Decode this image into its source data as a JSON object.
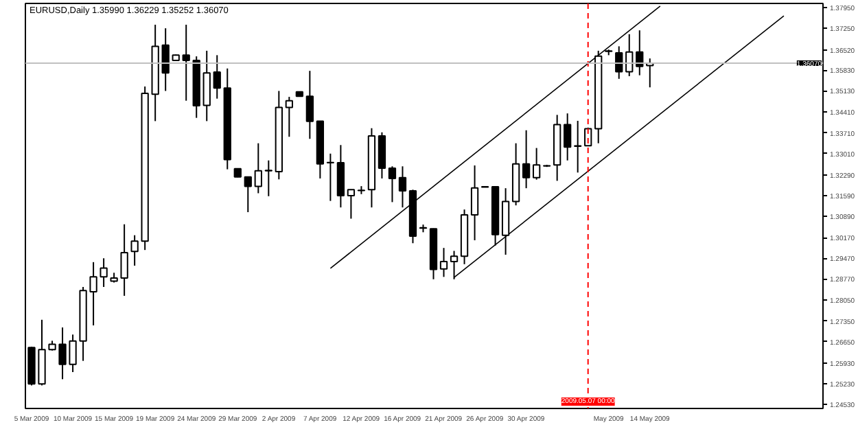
{
  "chart_data": {
    "type": "candlestick",
    "title": "EURUSD,Daily  1.35990 1.36229 1.35252 1.36070",
    "categories": [
      "5 Mar 2009",
      null,
      null,
      null,
      "10 Mar 2009",
      null,
      null,
      null,
      "15 Mar 2009",
      null,
      null,
      null,
      "19 Mar 2009",
      null,
      null,
      null,
      "24 Mar 2009",
      null,
      null,
      null,
      "29 Mar 2009",
      null,
      null,
      null,
      "2 Apr 2009",
      null,
      null,
      null,
      "7 Apr 2009",
      null,
      null,
      null,
      "12 Apr 2009",
      null,
      null,
      null,
      "16 Apr 2009",
      null,
      null,
      null,
      "21 Apr 2009",
      null,
      null,
      null,
      "26 Apr 2009",
      null,
      null,
      null,
      "30 Apr 2009",
      null,
      null,
      null,
      null,
      null,
      "2009.05.07 00:00",
      null,
      "May 2009",
      null,
      null,
      null,
      "14 May 2009",
      null,
      null,
      null,
      null,
      null,
      null,
      null,
      null,
      null,
      null,
      null,
      null,
      null,
      null,
      null,
      null
    ],
    "ohlc": [
      [
        1.2645,
        1.2648,
        1.2517,
        1.2522
      ],
      [
        1.2522,
        1.2739,
        1.2517,
        1.2638
      ],
      [
        1.2638,
        1.2668,
        1.2635,
        1.2656
      ],
      [
        1.2656,
        1.2713,
        1.2538,
        1.2588
      ],
      [
        1.2588,
        1.2689,
        1.2562,
        1.2667
      ],
      [
        1.2667,
        1.285,
        1.26,
        1.2838
      ],
      [
        1.2834,
        1.2934,
        1.272,
        1.2884
      ],
      [
        1.2884,
        1.2947,
        1.285,
        1.2914
      ],
      [
        1.287,
        1.2898,
        1.2865,
        1.288
      ],
      [
        1.288,
        1.3062,
        1.282,
        1.2966
      ],
      [
        1.297,
        1.3025,
        1.2922,
        1.3005
      ],
      [
        1.3005,
        1.3528,
        1.2975,
        1.3505
      ],
      [
        1.3502,
        1.3737,
        1.3411,
        1.3664
      ],
      [
        1.3668,
        1.3725,
        1.3513,
        1.3574
      ],
      [
        1.3616,
        1.3636,
        1.3616,
        1.3634
      ],
      [
        1.3634,
        1.3737,
        1.348,
        1.3616
      ],
      [
        1.3616,
        1.363,
        1.3422,
        1.3463
      ],
      [
        1.3464,
        1.3649,
        1.3411,
        1.3574
      ],
      [
        1.3577,
        1.3634,
        1.3487,
        1.3523
      ],
      [
        1.3523,
        1.3589,
        1.3248,
        1.3281
      ],
      [
        1.325,
        1.3251,
        1.3221,
        1.3222
      ],
      [
        1.3222,
        1.3223,
        1.3103,
        1.319
      ],
      [
        1.319,
        1.3336,
        1.3167,
        1.3243
      ],
      [
        1.3243,
        1.3278,
        1.3157,
        1.3244
      ],
      [
        1.324,
        1.3513,
        1.3214,
        1.3457
      ],
      [
        1.3457,
        1.3493,
        1.3358,
        1.348
      ],
      [
        1.351,
        1.3511,
        1.3494,
        1.3495
      ],
      [
        1.3495,
        1.3581,
        1.3351,
        1.341
      ],
      [
        1.3411,
        1.3412,
        1.3217,
        1.3266
      ],
      [
        1.327,
        1.3301,
        1.3141,
        1.3271
      ],
      [
        1.327,
        1.333,
        1.3119,
        1.3159
      ],
      [
        1.3159,
        1.318,
        1.3081,
        1.3179
      ],
      [
        1.3176,
        1.3191,
        1.3164,
        1.3177
      ],
      [
        1.3179,
        1.3387,
        1.3119,
        1.3361
      ],
      [
        1.3361,
        1.3373,
        1.3217,
        1.3252
      ],
      [
        1.3252,
        1.3258,
        1.3137,
        1.3217
      ],
      [
        1.322,
        1.3258,
        1.3119,
        1.3175
      ],
      [
        1.3175,
        1.3179,
        1.2998,
        1.3022
      ],
      [
        1.305,
        1.3061,
        1.3035,
        1.3049
      ],
      [
        1.3047,
        1.3048,
        1.2876,
        1.2909
      ],
      [
        1.2911,
        1.2982,
        1.2884,
        1.2936
      ],
      [
        1.2936,
        1.2972,
        1.2876,
        1.2954
      ],
      [
        1.2954,
        1.3112,
        1.2927,
        1.3094
      ],
      [
        1.3094,
        1.3261,
        1.3008,
        1.3185
      ],
      [
        1.3188,
        1.319,
        1.3187,
        1.3189
      ],
      [
        1.3189,
        1.319,
        1.299,
        1.3027
      ],
      [
        1.3025,
        1.3184,
        1.2959,
        1.3139
      ],
      [
        1.3139,
        1.3336,
        1.3126,
        1.3266
      ],
      [
        1.3266,
        1.338,
        1.3184,
        1.322
      ],
      [
        1.322,
        1.332,
        1.3213,
        1.3263
      ],
      [
        1.326,
        1.3263,
        1.3256,
        1.3259
      ],
      [
        1.3263,
        1.3432,
        1.3209,
        1.3399
      ],
      [
        1.3399,
        1.3437,
        1.3278,
        1.3323
      ],
      [
        1.3326,
        1.3412,
        1.3237,
        1.3327
      ],
      [
        1.3328,
        1.3389,
        1.3326,
        1.3385
      ],
      [
        1.3385,
        1.3649,
        1.3336,
        1.3631
      ],
      [
        1.3648,
        1.3653,
        1.3634,
        1.3647
      ],
      [
        1.3642,
        1.3664,
        1.3554,
        1.3578
      ],
      [
        1.3578,
        1.3705,
        1.3563,
        1.3645
      ],
      [
        1.3645,
        1.3718,
        1.3566,
        1.3596
      ],
      [
        1.3599,
        1.36229,
        1.35252,
        1.3607
      ],
      null,
      null,
      null,
      null,
      null,
      null,
      null,
      null,
      null,
      null,
      null,
      null,
      null,
      null,
      null,
      null
    ],
    "series": [
      {
        "type": "line",
        "color": "#000000",
        "values": [
          null,
          null,
          null,
          null,
          null,
          null,
          null,
          null,
          null,
          null,
          null,
          null,
          null,
          null,
          null,
          null,
          null,
          null,
          null,
          null,
          null,
          null,
          null,
          null,
          null,
          null,
          null,
          null,
          null,
          1.2913,
          null,
          null,
          null,
          null,
          null,
          null,
          null,
          null,
          null,
          null,
          null,
          null,
          null,
          null,
          null,
          null,
          null,
          null,
          null,
          null,
          null,
          null,
          null,
          null,
          null,
          null,
          null,
          null,
          null,
          null,
          null,
          1.38,
          null,
          null,
          null,
          null,
          null,
          null,
          null,
          null,
          null,
          null,
          null,
          null,
          null,
          null,
          null
        ]
      },
      {
        "type": "line",
        "color": "#000000",
        "values": [
          null,
          null,
          null,
          null,
          null,
          null,
          null,
          null,
          null,
          null,
          null,
          null,
          null,
          null,
          null,
          null,
          null,
          null,
          null,
          null,
          null,
          null,
          null,
          null,
          null,
          null,
          null,
          null,
          null,
          null,
          null,
          null,
          null,
          null,
          null,
          null,
          null,
          null,
          null,
          null,
          null,
          1.2882,
          null,
          null,
          null,
          null,
          null,
          null,
          null,
          null,
          null,
          null,
          null,
          null,
          null,
          null,
          null,
          null,
          null,
          null,
          null,
          null,
          null,
          null,
          null,
          null,
          null,
          null,
          null,
          null,
          null,
          null,
          null,
          1.3767,
          null,
          null,
          null
        ]
      }
    ],
    "ylim": [
      1.2439,
      1.3809
    ],
    "yticks": [
      {
        "value": 1.3795,
        "label": "1.37950"
      },
      {
        "value": 1.3725,
        "label": "1.37250"
      },
      {
        "value": 1.3652,
        "label": "1.36520"
      },
      {
        "value": 1.3583,
        "label": "1.35830"
      },
      {
        "value": 1.3513,
        "label": "1.35130"
      },
      {
        "value": 1.3441,
        "label": "1.34410"
      },
      {
        "value": 1.3371,
        "label": "1.33710"
      },
      {
        "value": 1.3301,
        "label": "1.33010"
      },
      {
        "value": 1.3229,
        "label": "1.32290"
      },
      {
        "value": 1.3159,
        "label": "1.31590"
      },
      {
        "value": 1.3089,
        "label": "1.30890"
      },
      {
        "value": 1.3017,
        "label": "1.30170"
      },
      {
        "value": 1.2947,
        "label": "1.29470"
      },
      {
        "value": 1.2877,
        "label": "1.28770"
      },
      {
        "value": 1.2805,
        "label": "1.28050"
      },
      {
        "value": 1.2735,
        "label": "1.27350"
      },
      {
        "value": 1.2665,
        "label": "1.26650"
      },
      {
        "value": 1.2593,
        "label": "1.25930"
      },
      {
        "value": 1.2523,
        "label": "1.25230"
      },
      {
        "value": 1.2453,
        "label": "1.24530"
      }
    ],
    "ref_lines": [
      {
        "axis": "x",
        "value": "2009.05.07 00:00",
        "color": "#ff0000",
        "line_style": "dashed"
      },
      {
        "axis": "y",
        "value": 1.3607,
        "label": "1.36070",
        "color": "#c0c0c0",
        "line_style": "solid"
      }
    ],
    "grid": false
  }
}
